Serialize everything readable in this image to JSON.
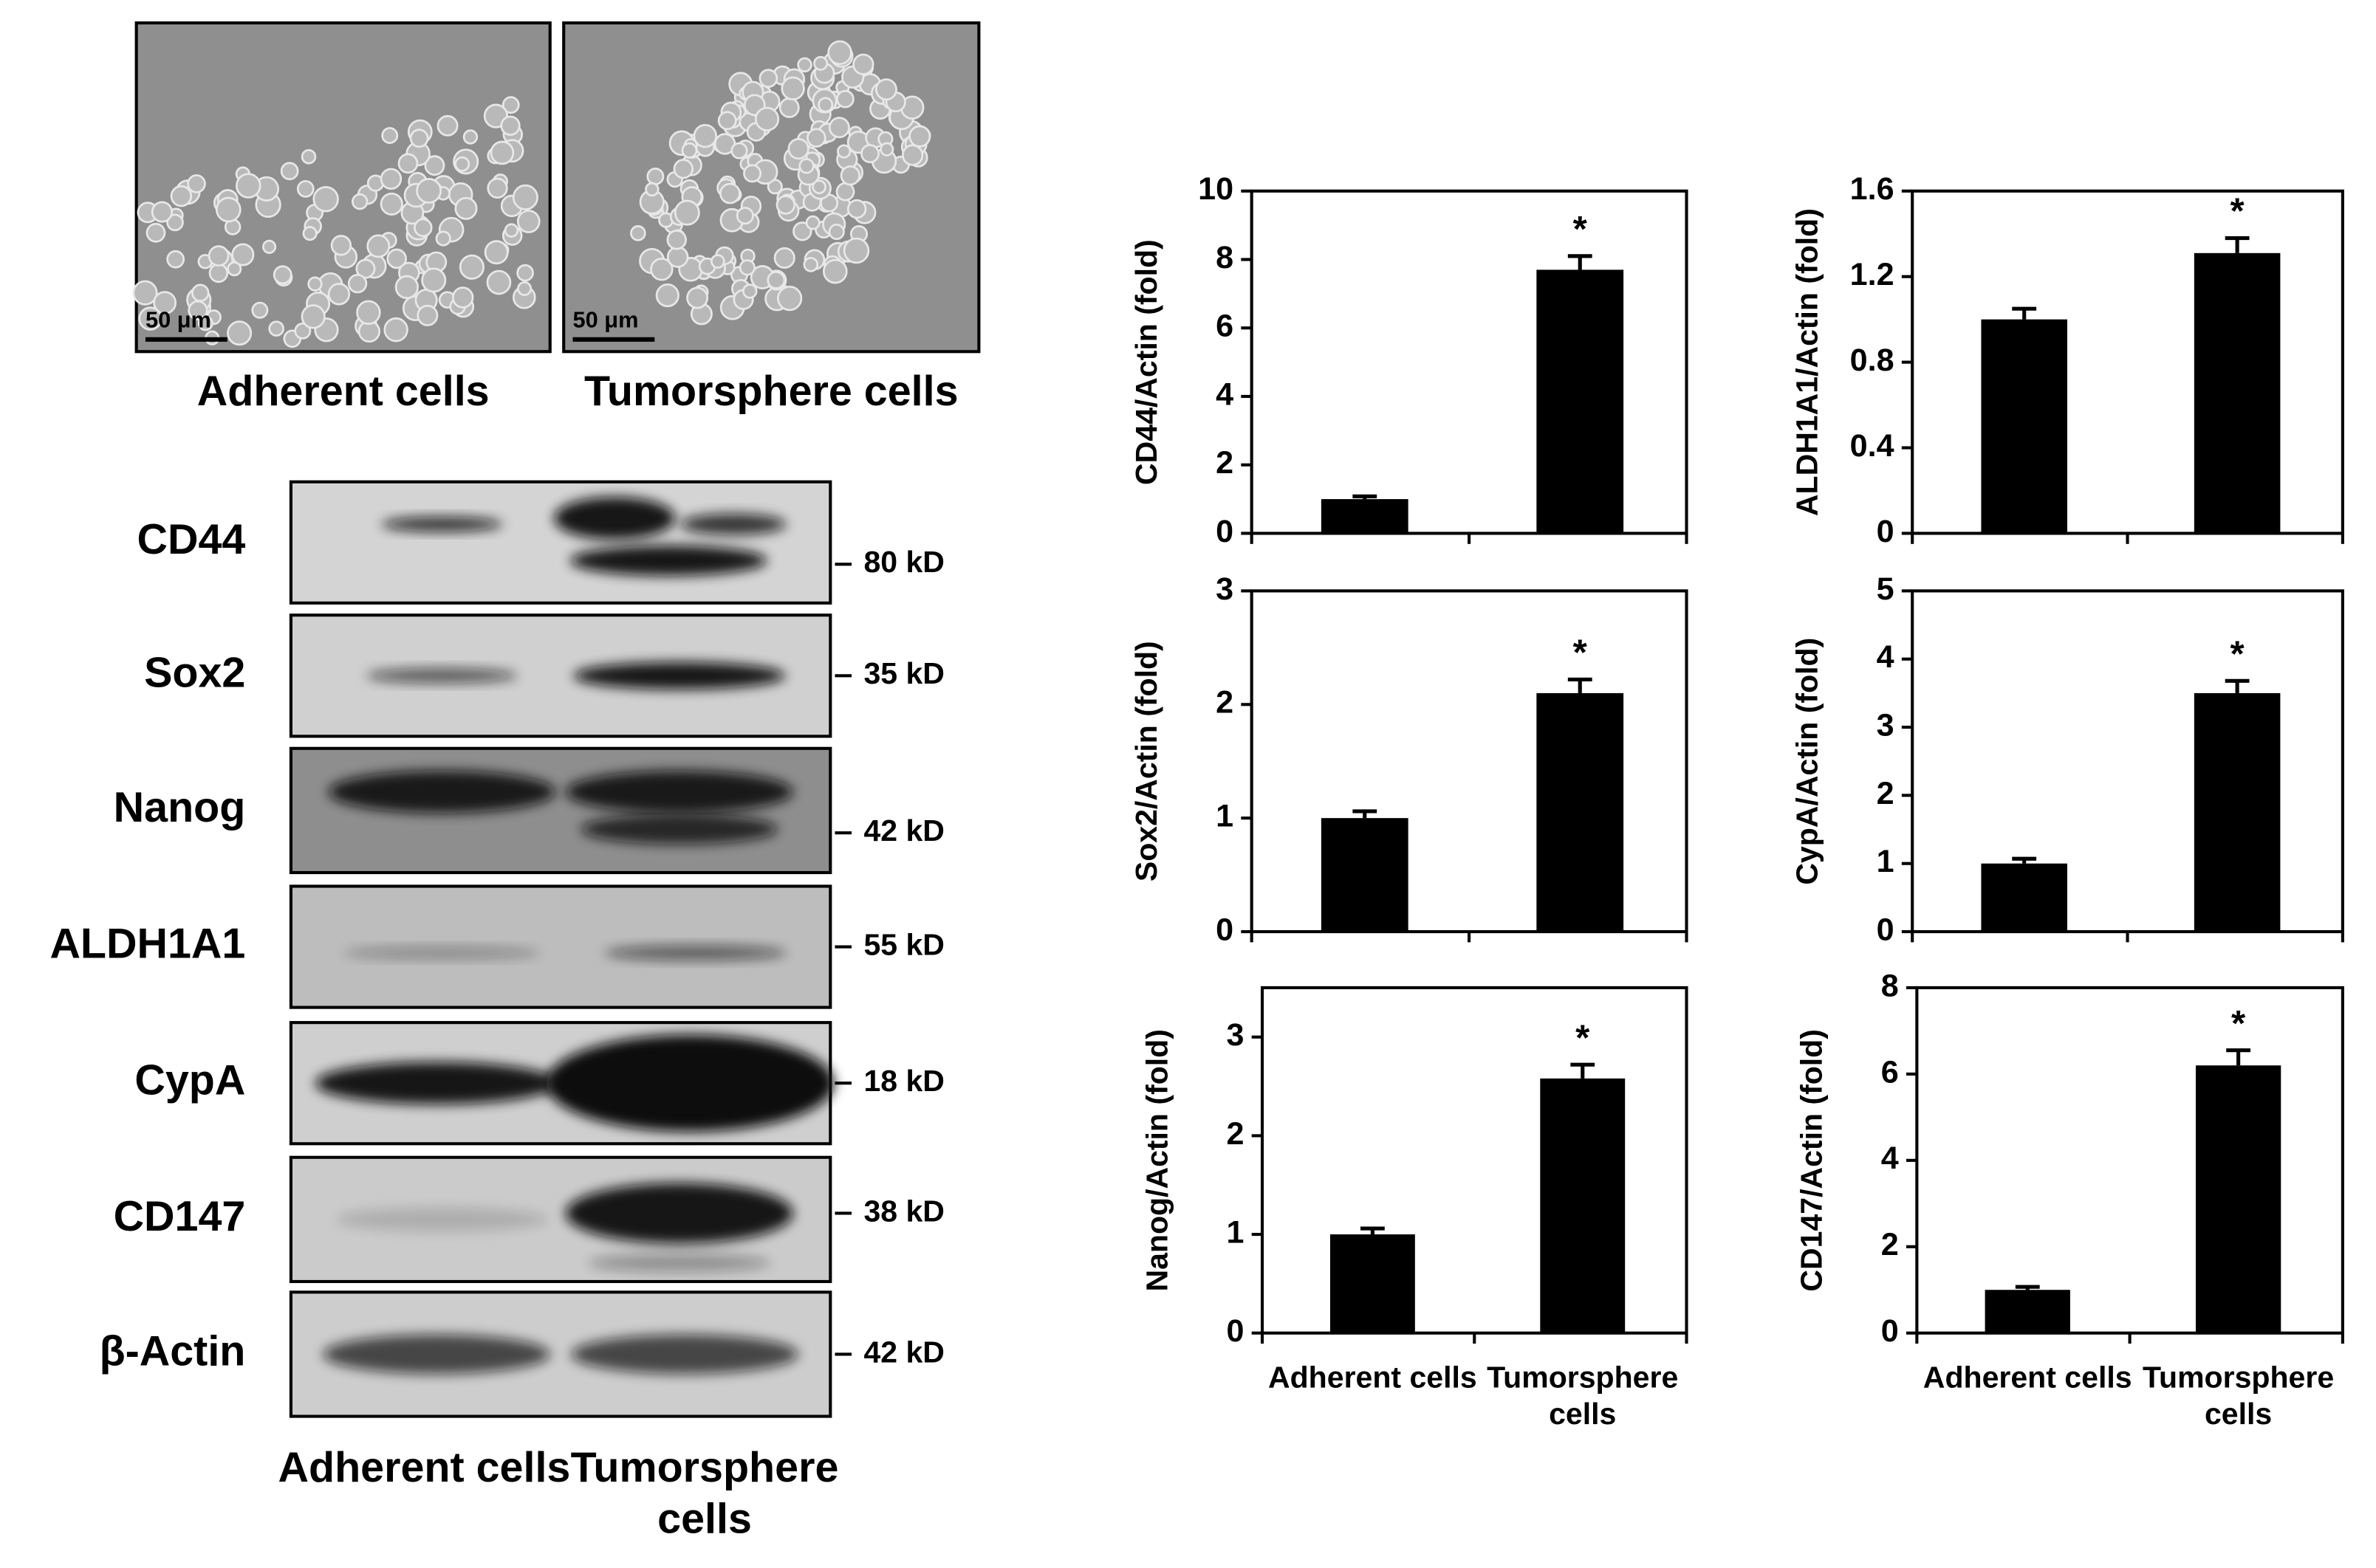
{
  "micrographs": {
    "images": [
      {
        "label": "Adherent cells",
        "scale_bar": "50 μm"
      },
      {
        "label": "Tumorsphere cells",
        "scale_bar": "50 μm"
      }
    ]
  },
  "western_blot": {
    "rows": [
      {
        "protein": "CD44",
        "size": "80 kD"
      },
      {
        "protein": "Sox2",
        "size": "35 kD"
      },
      {
        "protein": "Nanog",
        "size": "42 kD"
      },
      {
        "protein": "ALDH1A1",
        "size": "55 kD"
      },
      {
        "protein": "CypA",
        "size": "18 kD"
      },
      {
        "protein": "CD147",
        "size": "38 kD"
      },
      {
        "protein": "β-Actin",
        "size": "42 kD"
      }
    ],
    "lanes": [
      "Adherent cells",
      "Tumorsphere cells"
    ]
  },
  "chart_data": [
    {
      "type": "bar",
      "ylabel": "CD44/Actin (fold)",
      "categories": [
        null,
        null
      ],
      "values": [
        1,
        7.7
      ],
      "errors": [
        0.08,
        0.4
      ],
      "significance": [
        null,
        "*"
      ],
      "color": "#000000",
      "ylim": [
        0,
        10
      ],
      "yticks": [
        0,
        2,
        4,
        6,
        8,
        10
      ]
    },
    {
      "type": "bar",
      "ylabel": "ALDH1A1/Actin (fold)",
      "categories": [
        null,
        null
      ],
      "values": [
        1.0,
        1.31
      ],
      "errors": [
        0.05,
        0.07
      ],
      "significance": [
        null,
        "*"
      ],
      "color": "#000000",
      "ylim": [
        0,
        1.6
      ],
      "yticks": [
        0,
        0.4,
        0.8,
        1.2,
        1.6
      ]
    },
    {
      "type": "bar",
      "ylabel": "Sox2/Actin (fold)",
      "categories": [
        null,
        null
      ],
      "values": [
        1,
        2.1
      ],
      "errors": [
        0.06,
        0.12
      ],
      "significance": [
        null,
        "*"
      ],
      "color": "#000000",
      "ylim": [
        0,
        3
      ],
      "yticks": [
        0,
        1,
        2,
        3
      ]
    },
    {
      "type": "bar",
      "ylabel": "CypA/Actin (fold)",
      "categories": [
        null,
        null
      ],
      "values": [
        1,
        3.5
      ],
      "errors": [
        0.07,
        0.18
      ],
      "significance": [
        null,
        "*"
      ],
      "color": "#000000",
      "ylim": [
        0,
        5
      ],
      "yticks": [
        0,
        1,
        2,
        3,
        4,
        5
      ]
    },
    {
      "type": "bar",
      "ylabel": "Nanog/Actin (fold)",
      "categories": [
        "Adherent cells",
        "Tumorsphere cells"
      ],
      "values": [
        1,
        2.58
      ],
      "errors": [
        0.06,
        0.14
      ],
      "significance": [
        null,
        "*"
      ],
      "color": "#000000",
      "ylim": [
        0,
        3.5
      ],
      "yticks": [
        0,
        1,
        2,
        3
      ]
    },
    {
      "type": "bar",
      "ylabel": "CD147/Actin (fold)",
      "categories": [
        "Adherent cells",
        "Tumorsphere cells"
      ],
      "values": [
        1,
        6.2
      ],
      "errors": [
        0.07,
        0.35
      ],
      "significance": [
        null,
        "*"
      ],
      "color": "#000000",
      "ylim": [
        0,
        8
      ],
      "yticks": [
        0,
        2,
        4,
        6,
        8
      ]
    }
  ]
}
